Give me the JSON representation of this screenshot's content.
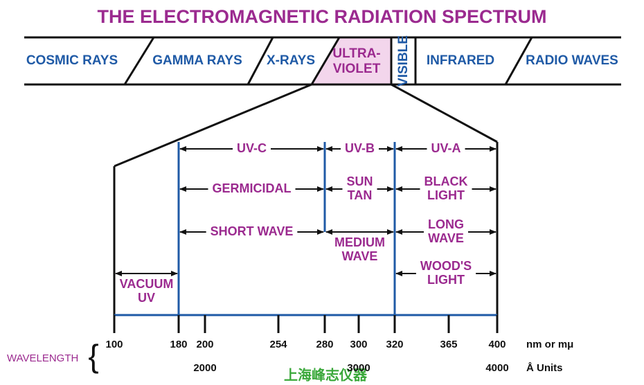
{
  "title": "THE ELECTROMAGNETIC RADIATION SPECTRUM",
  "spectrum": [
    {
      "lines": [
        "COSMIC RAYS"
      ]
    },
    {
      "lines": [
        "GAMMA RAYS"
      ]
    },
    {
      "lines": [
        "X-RAYS"
      ]
    },
    {
      "lines": [
        "ULTRA-",
        "VIOLET"
      ]
    },
    {
      "lines": [
        "VISIBLE"
      ]
    },
    {
      "lines": [
        "INFRARED"
      ]
    },
    {
      "lines": [
        "RADIO WAVES"
      ]
    }
  ],
  "uv_labels": [
    {
      "lines": [
        "UV-C"
      ]
    },
    {
      "lines": [
        "UV-B"
      ]
    },
    {
      "lines": [
        "UV-A"
      ]
    },
    {
      "lines": [
        "GERMICIDAL"
      ]
    },
    {
      "lines": [
        "SUN",
        "TAN"
      ]
    },
    {
      "lines": [
        "BLACK",
        "LIGHT"
      ]
    },
    {
      "lines": [
        "SHORT WAVE"
      ]
    },
    {
      "lines": [
        "MEDIUM",
        "WAVE"
      ]
    },
    {
      "lines": [
        "LONG",
        "WAVE"
      ]
    },
    {
      "lines": [
        "VACUUM",
        "UV"
      ]
    },
    {
      "lines": [
        "WOOD'S",
        "LIGHT"
      ]
    }
  ],
  "wavelength_label": "WAVELENGTH",
  "nm_ticks": [
    100,
    180,
    200,
    254,
    280,
    300,
    320,
    365,
    400
  ],
  "nm_unit": "nm or mμ",
  "angstrom_ticks": [
    2000,
    3000,
    4000
  ],
  "angstrom_unit": "Å Units",
  "watermark": "上海峰志仪器"
}
